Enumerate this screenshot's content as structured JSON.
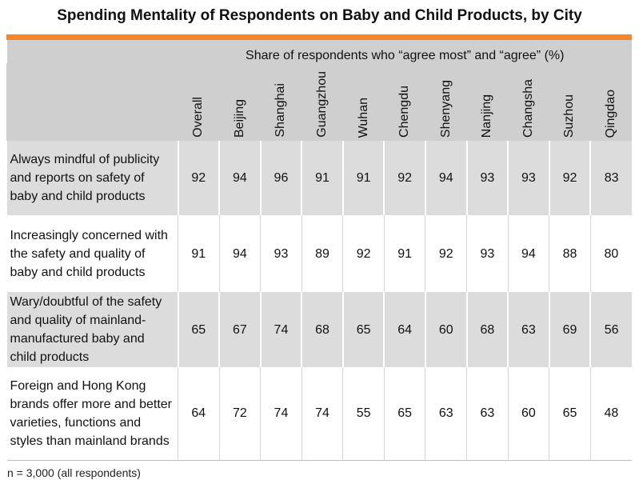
{
  "title": "Spending Mentality of Respondents on Baby and Child Products, by City",
  "accent_color": "#f7862a",
  "header": {
    "caption": "Share of respondents who “agree most” and “agree” (%)",
    "columns": [
      "Overall",
      "Beijing",
      "Shanghai",
      "Guangzhou",
      "Wuhan",
      "Chengdu",
      "Shenyang",
      "Nanjing",
      "Changsha",
      "Suzhou",
      "Qingdao"
    ]
  },
  "rows": [
    {
      "label": "Always mindful of publicity and reports on safety of baby and child products",
      "values": [
        "92",
        "94",
        "96",
        "91",
        "91",
        "92",
        "94",
        "93",
        "93",
        "92",
        "83"
      ]
    },
    {
      "label": "Increasingly concerned with the safety and quality of baby and child products",
      "values": [
        "91",
        "94",
        "93",
        "89",
        "92",
        "91",
        "92",
        "93",
        "94",
        "88",
        "80"
      ]
    },
    {
      "label": "Wary/doubtful of the safety and quality of mainland-manufactured baby and child products",
      "values": [
        "65",
        "67",
        "74",
        "68",
        "65",
        "64",
        "60",
        "68",
        "63",
        "69",
        "56"
      ]
    },
    {
      "label": "Foreign and Hong Kong brands offer more and better varieties, functions and styles than mainland brands",
      "values": [
        "64",
        "72",
        "74",
        "74",
        "55",
        "65",
        "63",
        "63",
        "60",
        "65",
        "48"
      ]
    }
  ],
  "footnote": "n = 3,000 (all respondents)"
}
